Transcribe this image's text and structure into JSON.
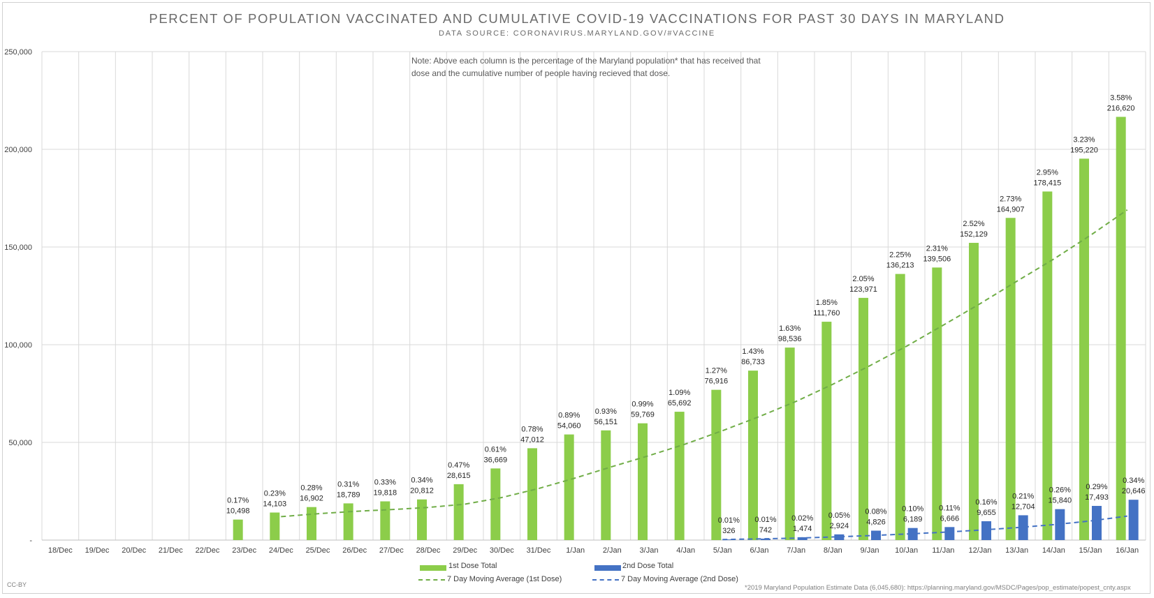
{
  "chart_data": {
    "type": "bar",
    "title": "PERCENT OF POPULATION VACCINATED AND CUMULATIVE COVID-19 VACCINATIONS FOR PAST 30 DAYS IN MARYLAND",
    "subtitle": "DATA SOURCE: CORONAVIRUS.MARYLAND.GOV/#VACCINE",
    "note": "Note: Above each column is the percentage of the Maryland population* that has received that dose and the cumulative number of people having recieved that dose.",
    "footnote": "*2019 Maryland Population Estimate Data (6,045,680): https://planning.maryland.gov/MSDC/Pages/pop_estimate/popest_cnty.aspx",
    "license": "CC-BY",
    "xlabel": "",
    "ylabel": "",
    "ylim": [
      0,
      250000
    ],
    "yticks": [
      0,
      50000,
      100000,
      150000,
      200000,
      250000
    ],
    "ytick_labels": [
      "-",
      "50,000",
      "100,000",
      "150,000",
      "200,000",
      "250,000"
    ],
    "grid": true,
    "legend_position": "bottom",
    "categories": [
      "18/Dec",
      "19/Dec",
      "20/Dec",
      "21/Dec",
      "22/Dec",
      "23/Dec",
      "24/Dec",
      "25/Dec",
      "26/Dec",
      "27/Dec",
      "28/Dec",
      "29/Dec",
      "30/Dec",
      "31/Dec",
      "1/Jan",
      "2/Jan",
      "3/Jan",
      "4/Jan",
      "5/Jan",
      "6/Jan",
      "7/Jan",
      "8/Jan",
      "9/Jan",
      "10/Jan",
      "11/Jan",
      "12/Jan",
      "13/Jan",
      "14/Jan",
      "15/Jan",
      "16/Jan"
    ],
    "series": [
      {
        "name": "1st Dose Total",
        "color": "#8ccd4a",
        "values": [
          null,
          null,
          null,
          null,
          null,
          10498,
          14103,
          16902,
          18789,
          19818,
          20812,
          28615,
          36669,
          47012,
          54060,
          56151,
          59769,
          65692,
          76916,
          86733,
          98536,
          111760,
          123971,
          136213,
          139506,
          152129,
          164907,
          178415,
          195220,
          216620
        ],
        "value_labels": [
          "",
          "",
          "",
          "",
          "",
          "10,498",
          "14,103",
          "16,902",
          "18,789",
          "19,818",
          "20,812",
          "28,615",
          "36,669",
          "47,012",
          "54,060",
          "56,151",
          "59,769",
          "65,692",
          "76,916",
          "86,733",
          "98,536",
          "111,760",
          "123,971",
          "136,213",
          "139,506",
          "152,129",
          "164,907",
          "178,415",
          "195,220",
          "216,620"
        ],
        "percent_labels": [
          "",
          "",
          "",
          "",
          "",
          "0.17%",
          "0.23%",
          "0.28%",
          "0.31%",
          "0.33%",
          "0.34%",
          "0.47%",
          "0.61%",
          "0.78%",
          "0.89%",
          "0.93%",
          "0.99%",
          "1.09%",
          "1.27%",
          "1.43%",
          "1.63%",
          "1.85%",
          "2.05%",
          "2.25%",
          "2.31%",
          "2.52%",
          "2.73%",
          "2.95%",
          "3.23%",
          "3.58%"
        ]
      },
      {
        "name": "2nd Dose Total",
        "color": "#4472c4",
        "values": [
          null,
          null,
          null,
          null,
          null,
          null,
          null,
          null,
          null,
          null,
          null,
          null,
          null,
          null,
          null,
          null,
          null,
          null,
          326,
          742,
          1474,
          2924,
          4826,
          6189,
          6666,
          9655,
          12704,
          15840,
          17493,
          20646
        ],
        "value_labels": [
          "",
          "",
          "",
          "",
          "",
          "",
          "",
          "",
          "",
          "",
          "",
          "",
          "",
          "",
          "",
          "",
          "",
          "",
          "326",
          "742",
          "1,474",
          "2,924",
          "4,826",
          "6,189",
          "6,666",
          "9,655",
          "12,704",
          "15,840",
          "17,493",
          "20,646"
        ],
        "percent_labels": [
          "",
          "",
          "",
          "",
          "",
          "",
          "",
          "",
          "",
          "",
          "",
          "",
          "",
          "",
          "",
          "",
          "",
          "",
          "0.01%",
          "0.01%",
          "0.02%",
          "0.05%",
          "0.08%",
          "0.10%",
          "0.11%",
          "0.16%",
          "0.21%",
          "0.26%",
          "0.29%",
          "0.34%"
        ]
      },
      {
        "name": "7 Day Moving Average (1st Dose)",
        "color": "#70ad47",
        "style": "dashed",
        "values": [
          null,
          null,
          null,
          null,
          null,
          null,
          12000,
          13500,
          14700,
          15600,
          16700,
          18400,
          21800,
          26400,
          31800,
          37600,
          43200,
          49200,
          56000,
          63200,
          71000,
          79800,
          89200,
          99200,
          110000,
          121000,
          132500,
          143800,
          156000,
          169000
        ]
      },
      {
        "name": "7 Day Moving Average (2nd Dose)",
        "color": "#4472c4",
        "style": "dashed",
        "values": [
          null,
          null,
          null,
          null,
          null,
          null,
          null,
          null,
          null,
          null,
          null,
          null,
          null,
          null,
          null,
          null,
          null,
          null,
          300,
          600,
          1000,
          1600,
          2300,
          3100,
          4000,
          5100,
          6400,
          7900,
          9800,
          12300
        ]
      }
    ]
  }
}
